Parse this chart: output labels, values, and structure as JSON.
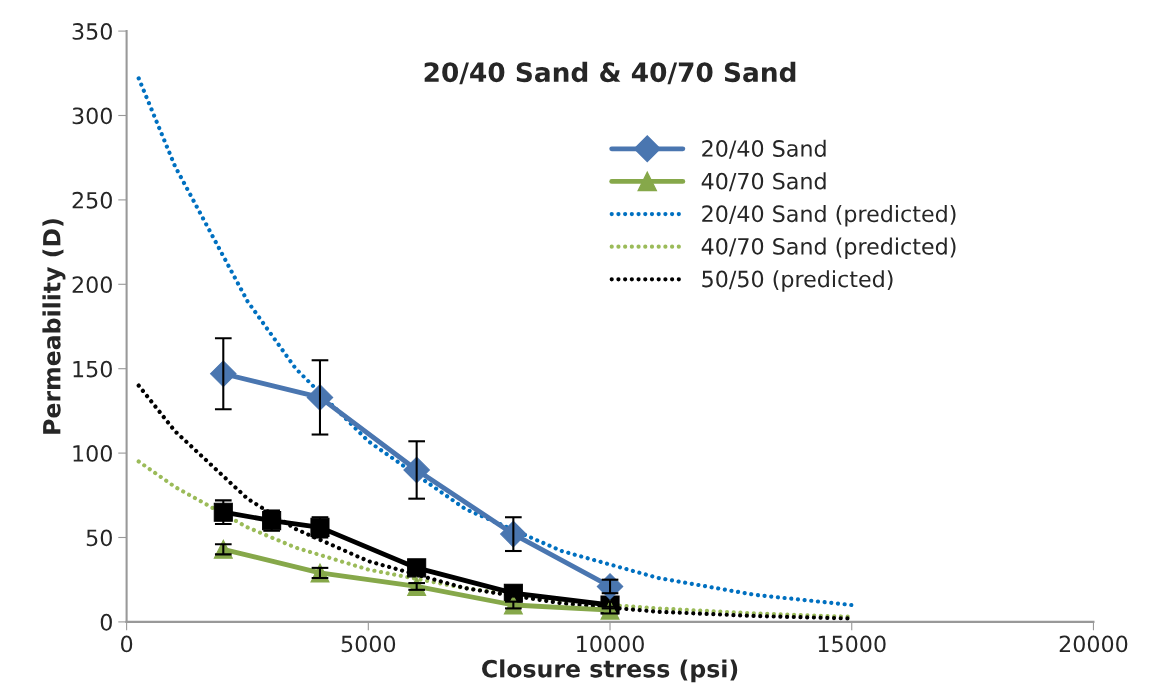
{
  "chart_data": {
    "type": "line",
    "title": "20/40 Sand & 40/70 Sand",
    "xlabel": "Closure stress (psi)",
    "ylabel": "Permeability (D)",
    "xlim": [
      0,
      20000
    ],
    "xticks": [
      0,
      5000,
      10000,
      15000,
      20000
    ],
    "ylim": [
      0,
      350
    ],
    "yticks": [
      0,
      50,
      100,
      150,
      200,
      250,
      300,
      350
    ],
    "grid": false,
    "legend": "top right",
    "series": [
      {
        "name": "20/40 Sand",
        "color": "#4a76b0",
        "marker": "diamond",
        "line_style": "solid",
        "x": [
          2000,
          4000,
          6000,
          8000,
          10000
        ],
        "values": [
          147,
          133,
          90,
          52,
          21
        ],
        "errors": [
          21,
          22,
          17,
          10,
          4
        ]
      },
      {
        "name": "40/70 Sand",
        "color": "#86a84a",
        "marker": "triangle",
        "line_style": "solid",
        "x": [
          2000,
          4000,
          6000,
          8000,
          10000
        ],
        "values": [
          43,
          29,
          21,
          10,
          7
        ],
        "errors": [
          3,
          3,
          2,
          2,
          2
        ]
      },
      {
        "name": "20/40 Sand (predicted)",
        "color": "#0070c0",
        "marker": "none",
        "line_style": "dotted",
        "x": [
          250,
          1000,
          2500,
          3500,
          5000,
          7000,
          9000,
          11000,
          13000,
          15000
        ],
        "values": [
          322,
          270,
          190,
          150,
          107,
          67,
          42,
          26,
          16,
          10
        ]
      },
      {
        "name": "40/70 Sand (predicted)",
        "color": "#9bbb59",
        "marker": "none",
        "line_style": "dotted",
        "x": [
          250,
          1000,
          2500,
          3500,
          5000,
          7000,
          9000,
          11000,
          13000,
          15000
        ],
        "values": [
          95,
          80,
          56,
          44,
          31,
          20,
          12,
          8,
          5,
          3
        ]
      },
      {
        "name": "50/50 (predicted)",
        "color": "#000000",
        "marker": "none",
        "line_style": "dotted",
        "x": [
          250,
          1000,
          2500,
          3500,
          5000,
          7000,
          9000,
          11000,
          13000,
          15000
        ],
        "values": [
          140,
          113,
          73,
          55,
          36,
          20,
          11,
          6,
          3.5,
          2
        ]
      },
      {
        "color": "#000000",
        "marker": "square",
        "line_style": "solid",
        "x": [
          2000,
          3000,
          4000,
          6000,
          8000,
          10000
        ],
        "values": [
          65,
          60,
          56,
          32,
          17,
          10
        ],
        "errors": [
          7,
          6,
          6,
          3,
          2,
          2
        ]
      }
    ]
  }
}
